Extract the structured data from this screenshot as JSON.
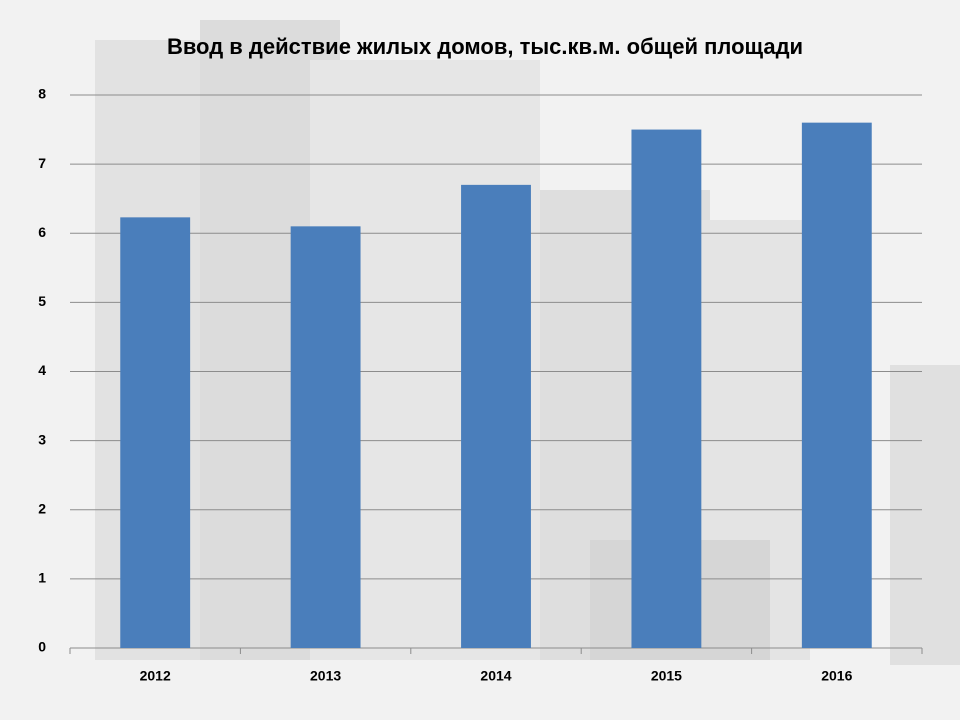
{
  "chart_data": {
    "type": "bar",
    "title": "Ввод  в действие жилых домов, тыс.кв.м. общей площади",
    "categories": [
      "2012",
      "2013",
      "2014",
      "2015",
      "2016"
    ],
    "values": [
      6.23,
      6.1,
      6.7,
      7.5,
      7.6
    ],
    "color": "#4a7ebb",
    "ylim": [
      0,
      8
    ],
    "yticks": [
      0,
      1,
      2,
      3,
      4,
      5,
      6,
      7,
      8
    ],
    "grid": true
  }
}
